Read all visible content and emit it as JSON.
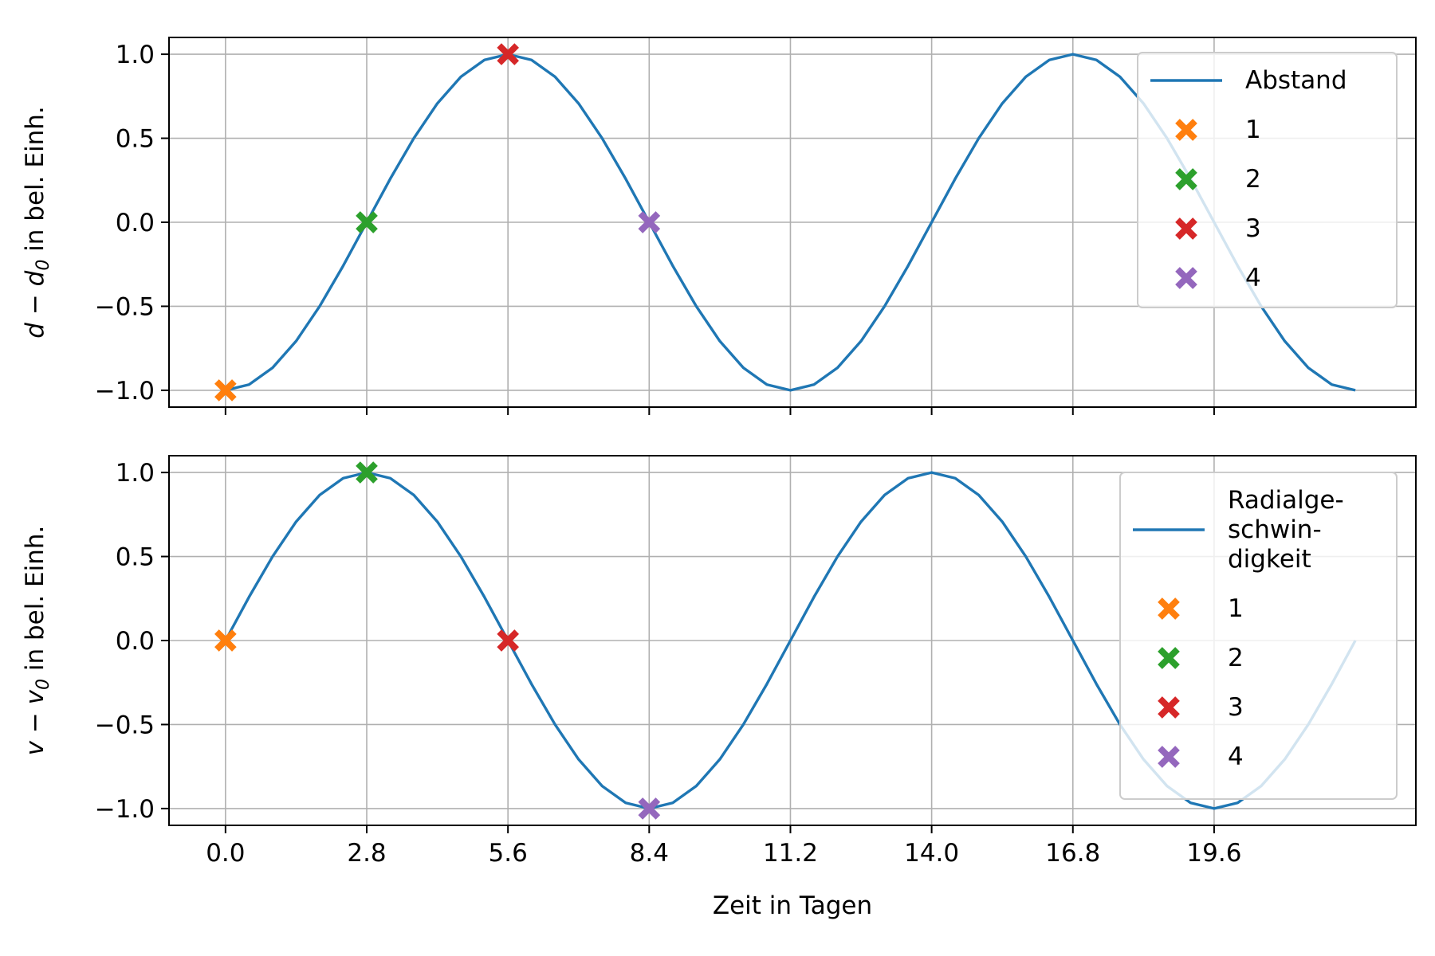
{
  "colors": {
    "series": "#1f77b4",
    "grid": "#b0b0b0",
    "marker_1": "#ff7f0e",
    "marker_2": "#2ca02c",
    "marker_3": "#d62728",
    "marker_4": "#9467bd"
  },
  "chart_data": [
    {
      "type": "line",
      "ylabel": {
        "var": "d",
        "sub": "0",
        "rest": " in bel. Einh."
      },
      "xlim": [
        -1.12,
        23.6
      ],
      "ylim": [
        -1.1,
        1.1
      ],
      "x_ticks": [
        0.0,
        2.8,
        5.6,
        8.4,
        11.2,
        14.0,
        16.8,
        19.6
      ],
      "x_tick_labels": [],
      "y_ticks": [
        1.0,
        0.5,
        0.0,
        -0.5,
        -1.0
      ],
      "y_tick_labels": [
        "1.0",
        "0.5",
        "0.0",
        "−0.5",
        "−1.0"
      ],
      "grid": true,
      "legend_placement": "top-right",
      "series": [
        {
          "name": "Abstand",
          "func": "-cos",
          "period": 11.2,
          "t_start": 0.0,
          "t_end": 22.4,
          "samples": 49
        }
      ],
      "markers": [
        {
          "name": "1",
          "x": 0.0,
          "y": -1.0,
          "color": "#ff7f0e"
        },
        {
          "name": "2",
          "x": 2.8,
          "y": 0.0,
          "color": "#2ca02c"
        },
        {
          "name": "3",
          "x": 5.6,
          "y": 1.0,
          "color": "#d62728"
        },
        {
          "name": "4",
          "x": 8.4,
          "y": 0.0,
          "color": "#9467bd"
        }
      ],
      "legend": {
        "lines": [
          "Abstand"
        ],
        "markers": [
          "1",
          "2",
          "3",
          "4"
        ]
      }
    },
    {
      "type": "line",
      "ylabel": {
        "var": "v",
        "sub": "0",
        "rest": " in bel. Einh."
      },
      "xlabel": "Zeit in Tagen",
      "xlim": [
        -1.12,
        23.6
      ],
      "ylim": [
        -1.1,
        1.1
      ],
      "x_ticks": [
        0.0,
        2.8,
        5.6,
        8.4,
        11.2,
        14.0,
        16.8,
        19.6
      ],
      "x_tick_labels": [
        "0.0",
        "2.8",
        "5.6",
        "8.4",
        "11.2",
        "14.0",
        "16.8",
        "19.6"
      ],
      "y_ticks": [
        1.0,
        0.5,
        0.0,
        -0.5,
        -1.0
      ],
      "y_tick_labels": [
        "1.0",
        "0.5",
        "0.0",
        "−0.5",
        "−1.0"
      ],
      "grid": true,
      "legend_placement": "right",
      "series": [
        {
          "name": "Radialgeschwindigkeit",
          "func": "sin",
          "period": 11.2,
          "t_start": 0.0,
          "t_end": 22.4,
          "samples": 49
        }
      ],
      "markers": [
        {
          "name": "1",
          "x": 0.0,
          "y": 0.0,
          "color": "#ff7f0e"
        },
        {
          "name": "2",
          "x": 2.8,
          "y": 1.0,
          "color": "#2ca02c"
        },
        {
          "name": "3",
          "x": 5.6,
          "y": 0.0,
          "color": "#d62728"
        },
        {
          "name": "4",
          "x": 8.4,
          "y": -1.0,
          "color": "#9467bd"
        }
      ],
      "legend": {
        "lines": [
          "Radialge-",
          "schwin-",
          "digkeit"
        ],
        "markers": [
          "1",
          "2",
          "3",
          "4"
        ]
      }
    }
  ]
}
